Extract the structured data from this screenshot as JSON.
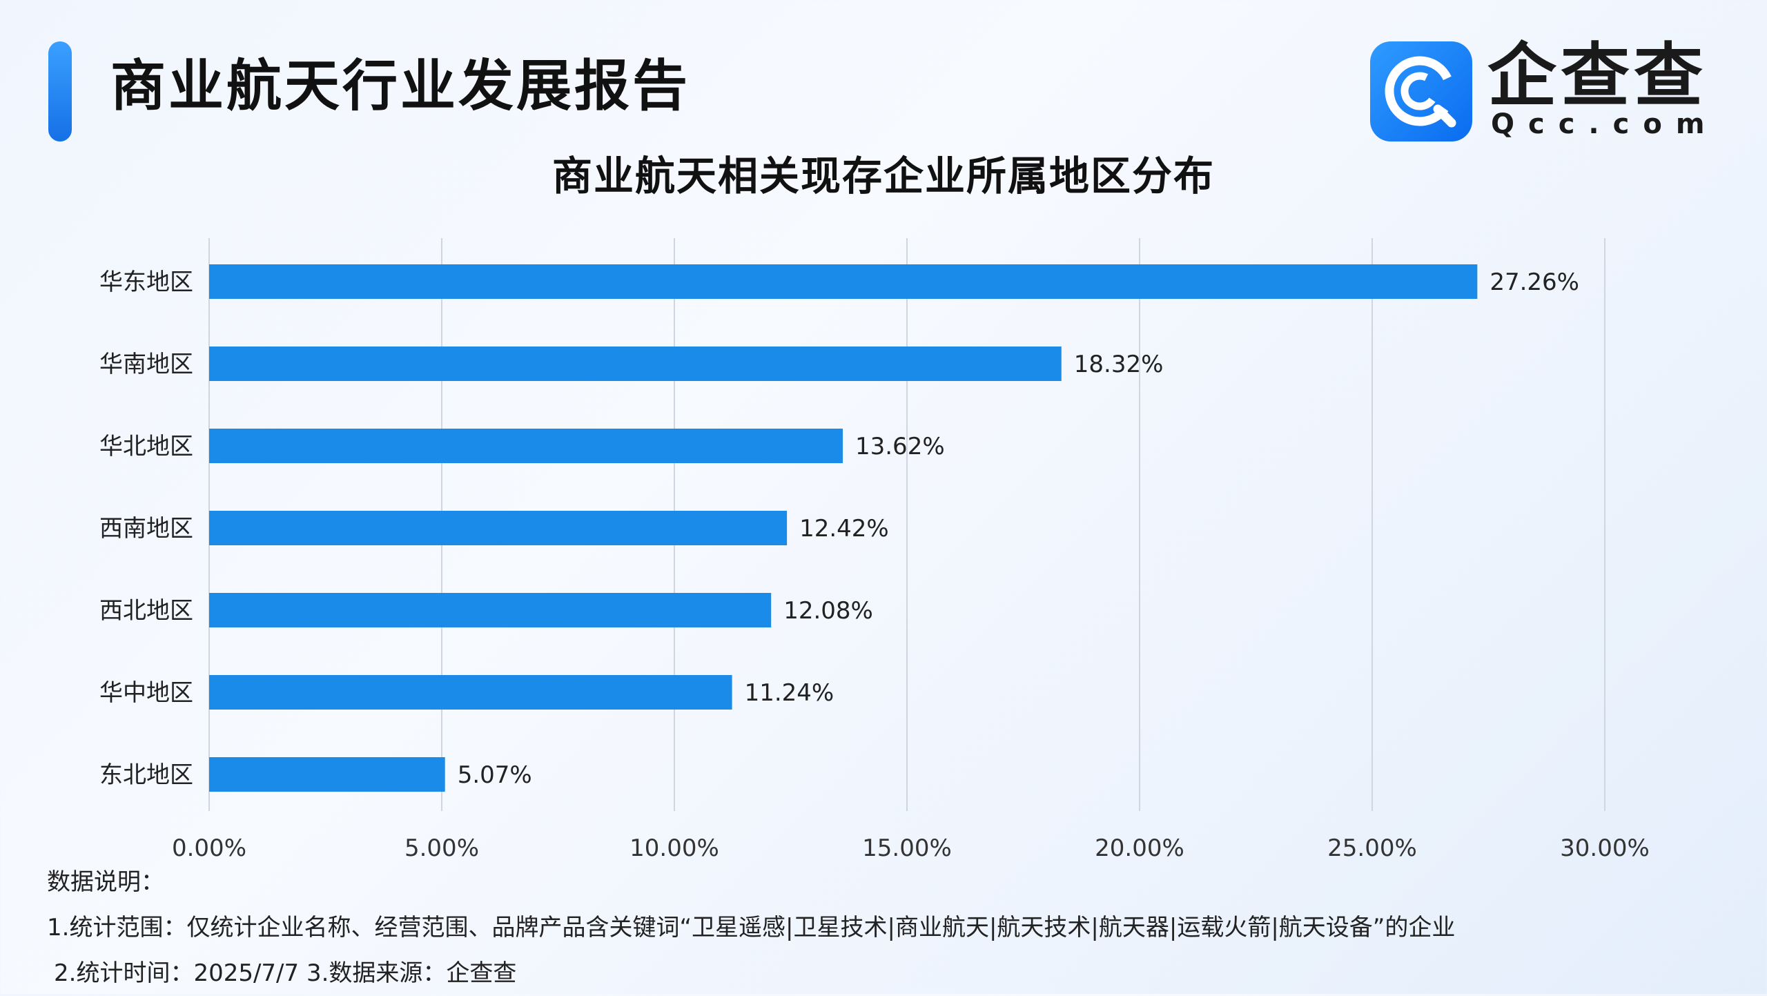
{
  "header": {
    "title": "商业航天行业发展报告",
    "logo_cn": "企查查",
    "logo_en": "Qcc.com"
  },
  "colors": {
    "bar": "#1a8be8",
    "accent": "#1a7ff0",
    "grid": "#cfd6e0"
  },
  "chart_data": {
    "type": "bar",
    "orientation": "horizontal",
    "title": "商业航天相关现存企业所属地区分布",
    "categories": [
      "华东地区",
      "华南地区",
      "华北地区",
      "西南地区",
      "西北地区",
      "华中地区",
      "东北地区"
    ],
    "values": [
      27.26,
      18.32,
      13.62,
      12.42,
      12.08,
      11.24,
      5.07
    ],
    "value_labels": [
      "27.26%",
      "18.32%",
      "13.62%",
      "12.42%",
      "12.08%",
      "11.24%",
      "5.07%"
    ],
    "xlim": [
      0,
      30
    ],
    "xticks": [
      0,
      5,
      10,
      15,
      20,
      25,
      30
    ],
    "xtick_labels": [
      "0.00%",
      "5.00%",
      "10.00%",
      "15.00%",
      "20.00%",
      "25.00%",
      "30.00%"
    ],
    "grid": "vertical",
    "legend": "none"
  },
  "notes": {
    "heading": "数据说明：",
    "line1": "1.统计范围：仅统计企业名称、经营范围、品牌产品含关键词“卫星遥感|卫星技术|商业航天|航天技术|航天器|运载火箭|航天设备”的企业",
    "line2": "2.统计时间：2025/7/7  3.数据来源：企查查"
  }
}
